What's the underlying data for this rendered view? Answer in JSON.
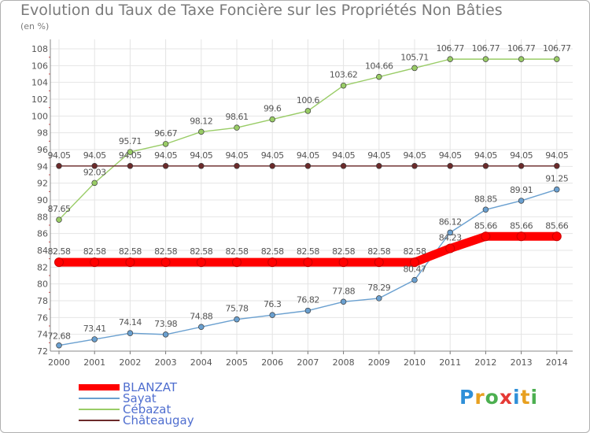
{
  "header": {
    "title": "Evolution du Taux de Taxe Foncière sur les Propriétés Non Bâties",
    "unit": "(en %)"
  },
  "brand": {
    "letters": [
      "P",
      "r",
      "o",
      "x",
      "i",
      "t",
      "i"
    ],
    "colors": [
      "#2f8fd8",
      "#e8a020",
      "#4caf50",
      "#e53935",
      "#2f8fd8",
      "#e8a020",
      "#4caf50"
    ]
  },
  "chart_data": {
    "type": "line",
    "title": "Evolution du Taux de Taxe Foncière sur les Propriétés Non Bâties",
    "ylabel": "(en %)",
    "xlabel": "",
    "x": [
      "2000",
      "2001",
      "2002",
      "2003",
      "2004",
      "2005",
      "2006",
      "2007",
      "2008",
      "2009",
      "2010",
      "2011",
      "2012",
      "2013",
      "2014"
    ],
    "ylim": [
      72,
      108
    ],
    "yticks": [
      72,
      74,
      76,
      78,
      80,
      82,
      84,
      86,
      88,
      90,
      92,
      94,
      96,
      98,
      100,
      102,
      104,
      106,
      108
    ],
    "grid": true,
    "legend_position": "bottom-left",
    "series": [
      {
        "name": "BLANZAT",
        "color": "#ff0000",
        "values": [
          82.58,
          82.58,
          82.58,
          82.58,
          82.58,
          82.58,
          82.58,
          82.58,
          82.58,
          82.58,
          82.58,
          84.23,
          85.66,
          85.66,
          85.66
        ],
        "labels": [
          "82.58",
          "82.58",
          "82.58",
          "82.58",
          "82.58",
          "82.58",
          "82.58",
          "82.58",
          "82.58",
          "82.58",
          "82.58",
          "84.23",
          "85.66",
          "85.66",
          "85.66"
        ]
      },
      {
        "name": "Sayat",
        "color": "#6aa0d0",
        "values": [
          72.68,
          73.41,
          74.14,
          73.98,
          74.88,
          75.78,
          76.3,
          76.82,
          77.88,
          78.29,
          80.47,
          86.12,
          88.85,
          89.91,
          91.25
        ],
        "labels": [
          "72.68",
          "73.41",
          "74.14",
          "73.98",
          "74.88",
          "75.78",
          "76.3",
          "76.82",
          "77.88",
          "78.29",
          "80.47",
          "86.12",
          "88.85",
          "89.91",
          "91.25"
        ]
      },
      {
        "name": "Cébazat",
        "color": "#99cc66",
        "values": [
          87.65,
          92.03,
          95.71,
          96.67,
          98.12,
          98.61,
          99.6,
          100.6,
          103.62,
          104.66,
          105.71,
          106.77,
          106.77,
          106.77,
          106.77
        ],
        "labels": [
          "87.65",
          "92.03",
          "95.71",
          "96.67",
          "98.12",
          "98.61",
          "99.6",
          "100.6",
          "103.62",
          "104.66",
          "105.71",
          "106.77",
          "106.77",
          "106.77",
          "106.77"
        ]
      },
      {
        "name": "Châteaugay",
        "color": "#6b2a2a",
        "values": [
          94.05,
          94.05,
          94.05,
          94.05,
          94.05,
          94.05,
          94.05,
          94.05,
          94.05,
          94.05,
          94.05,
          94.05,
          94.05,
          94.05,
          94.05
        ],
        "labels": [
          "94.05",
          "94.05",
          "94.05",
          "94.05",
          "94.05",
          "94.05",
          "94.05",
          "94.05",
          "94.05",
          "94.05",
          "94.05",
          "94.05",
          "94.05",
          "94.05",
          "94.05"
        ]
      }
    ]
  }
}
